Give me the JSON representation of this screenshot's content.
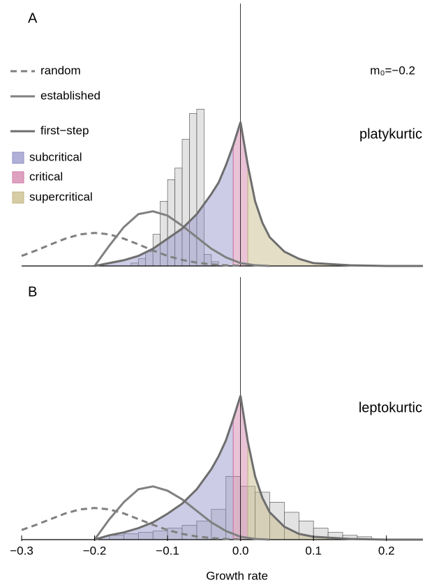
{
  "chart_data": [
    {
      "type": "distribution",
      "panel": "A",
      "annotation": "platykurtic",
      "parameter": "m₀=−0.2",
      "xlim": [
        -0.3,
        0.25
      ],
      "ylim": [
        0,
        1.8
      ],
      "histogram": {
        "color": "#d9d9d9",
        "bins": [
          -0.15,
          -0.14,
          -0.13,
          -0.12,
          -0.11,
          -0.1,
          -0.09,
          -0.08,
          -0.07,
          -0.06,
          -0.05,
          -0.04,
          -0.03
        ],
        "counts": [
          0.02,
          0.05,
          0.1,
          0.22,
          0.45,
          0.6,
          0.68,
          0.88,
          1.06,
          1.09,
          0.08,
          0.03
        ]
      },
      "series": [
        {
          "name": "random",
          "style": "dashed",
          "color": "#808080",
          "x": [
            -0.3,
            -0.28,
            -0.26,
            -0.24,
            -0.22,
            -0.2,
            -0.18,
            -0.16,
            -0.14,
            -0.12,
            -0.1,
            -0.08,
            -0.06,
            -0.04,
            -0.02,
            0
          ],
          "values": [
            0.07,
            0.108,
            0.15,
            0.19,
            0.22,
            0.23,
            0.22,
            0.19,
            0.15,
            0.108,
            0.07,
            0.042,
            0.023,
            0.011,
            0.005,
            0.002
          ]
        },
        {
          "name": "established",
          "style": "solid",
          "color": "#808080",
          "x": [
            -0.2,
            -0.18,
            -0.16,
            -0.14,
            -0.12,
            -0.1,
            -0.08,
            -0.06,
            -0.04,
            -0.02,
            0,
            0.02,
            0.04
          ],
          "values": [
            0,
            0.14,
            0.27,
            0.36,
            0.38,
            0.35,
            0.28,
            0.2,
            0.12,
            0.06,
            0.02,
            0.005,
            0
          ]
        },
        {
          "name": "first−step",
          "style": "solid",
          "color": "#6e6e6e",
          "x": [
            -0.2,
            -0.18,
            -0.16,
            -0.14,
            -0.12,
            -0.1,
            -0.08,
            -0.06,
            -0.04,
            -0.03,
            -0.02,
            -0.01,
            0,
            0.01,
            0.02,
            0.03,
            0.04,
            0.06,
            0.08,
            0.1,
            0.15,
            0.2,
            0.25
          ],
          "values": [
            0,
            0.02,
            0.04,
            0.07,
            0.12,
            0.19,
            0.26,
            0.36,
            0.5,
            0.58,
            0.7,
            0.84,
            1,
            0.7,
            0.45,
            0.3,
            0.2,
            0.1,
            0.05,
            0.02,
            0.005,
            0,
            0
          ],
          "regions": [
            {
              "name": "subcritical",
              "color": "#8f8fc8",
              "from": -0.2,
              "to": -0.01
            },
            {
              "name": "critical",
              "color": "#d07aa6",
              "from": -0.01,
              "to": 0.01
            },
            {
              "name": "supercritical",
              "color": "#c4b680",
              "from": 0.01,
              "to": 0.25
            }
          ]
        }
      ]
    },
    {
      "type": "distribution",
      "panel": "B",
      "annotation": "leptokurtic",
      "xlabel": "Growth rate",
      "xlim": [
        -0.3,
        0.25
      ],
      "ylim": [
        0,
        1.8
      ],
      "xticks": [
        {
          "value": -0.3,
          "label": "−0.3"
        },
        {
          "value": -0.2,
          "label": "−0.2"
        },
        {
          "value": -0.1,
          "label": "−0.1"
        },
        {
          "value": 0,
          "label": "0.0"
        },
        0.1,
        0.2
      ],
      "histogram": {
        "color": "#d9d9d9",
        "bins": [
          -0.18,
          -0.16,
          -0.14,
          -0.12,
          -0.1,
          -0.08,
          -0.06,
          -0.04,
          -0.02,
          0,
          0.02,
          0.04,
          0.06,
          0.08,
          0.1,
          0.12,
          0.14,
          0.16,
          0.18
        ],
        "counts": [
          0.03,
          0.04,
          0.05,
          0.06,
          0.08,
          0.1,
          0.13,
          0.21,
          0.44,
          0.37,
          0.33,
          0.26,
          0.19,
          0.13,
          0.08,
          0.05,
          0.03,
          0.02
        ]
      },
      "series": [
        {
          "style": "dashed",
          "color": "#808080",
          "x": [
            -0.3,
            -0.28,
            -0.26,
            -0.24,
            -0.22,
            -0.2,
            -0.18,
            -0.16,
            -0.14,
            -0.12,
            -0.1,
            -0.08,
            -0.06,
            -0.04,
            -0.02,
            0
          ],
          "values": [
            0.067,
            0.103,
            0.143,
            0.182,
            0.21,
            0.22,
            0.21,
            0.182,
            0.143,
            0.103,
            0.067,
            0.04,
            0.022,
            0.011,
            0.005,
            0.002
          ]
        },
        {
          "style": "solid",
          "color": "#808080",
          "x": [
            -0.2,
            -0.18,
            -0.16,
            -0.14,
            -0.12,
            -0.1,
            -0.08,
            -0.06,
            -0.04,
            -0.02,
            0,
            0.02,
            0.04
          ],
          "values": [
            0,
            0.14,
            0.26,
            0.35,
            0.37,
            0.34,
            0.28,
            0.2,
            0.12,
            0.06,
            0.02,
            0.005,
            0
          ]
        },
        {
          "style": "solid",
          "color": "#6e6e6e",
          "x": [
            -0.2,
            -0.18,
            -0.16,
            -0.14,
            -0.12,
            -0.1,
            -0.08,
            -0.06,
            -0.04,
            -0.03,
            -0.02,
            -0.01,
            0,
            0.01,
            0.02,
            0.03,
            0.04,
            0.06,
            0.08,
            0.1,
            0.15,
            0.2,
            0.25
          ],
          "values": [
            0,
            0.03,
            0.05,
            0.08,
            0.12,
            0.18,
            0.25,
            0.35,
            0.49,
            0.58,
            0.69,
            0.84,
            1,
            0.68,
            0.44,
            0.29,
            0.19,
            0.09,
            0.04,
            0.02,
            0.005,
            0,
            0
          ],
          "regions": [
            {
              "color": "#8f8fc8",
              "from": -0.2,
              "to": -0.01
            },
            {
              "color": "#d07aa6",
              "from": -0.01,
              "to": 0.01
            },
            {
              "color": "#c4b680",
              "from": 0.01,
              "to": 0.25
            }
          ]
        }
      ]
    }
  ]
}
